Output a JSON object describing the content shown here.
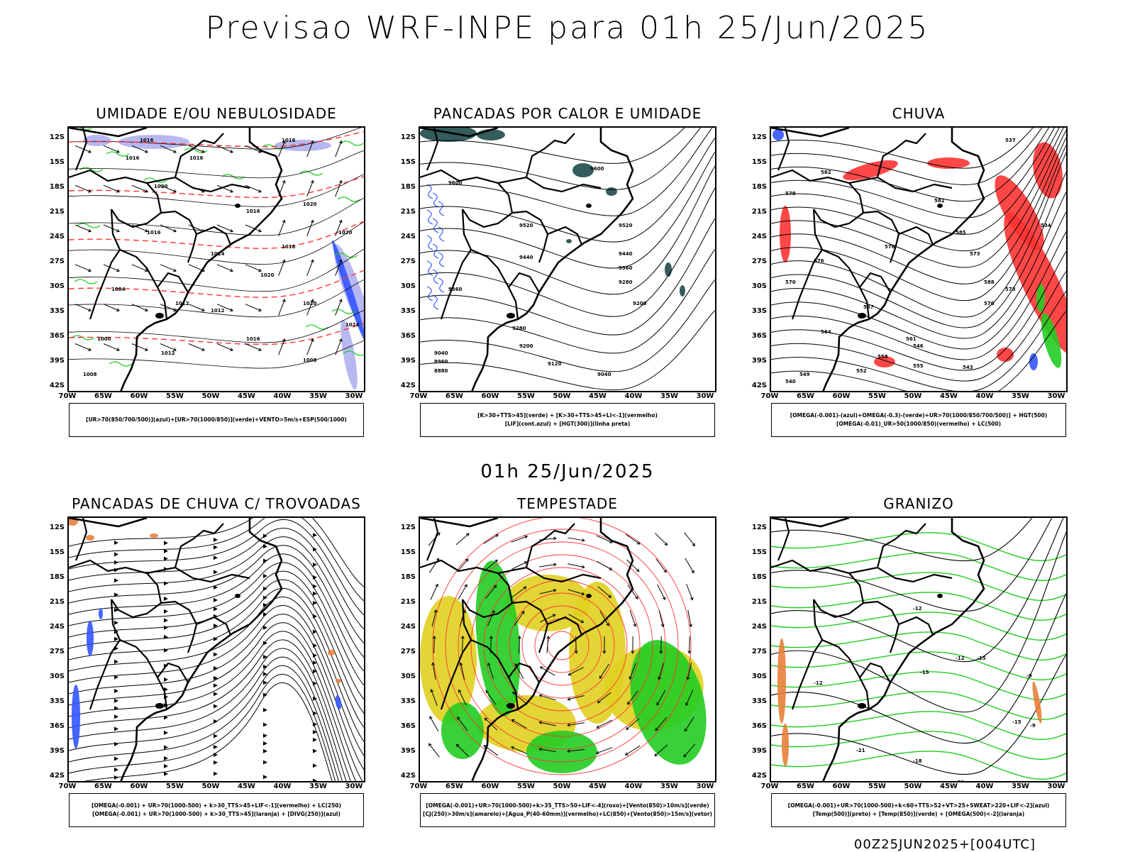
{
  "title": "Previsao WRF-INPE  para 01h 25/Jun/2025",
  "subtitle": "01h 25/Jun/2025",
  "footer": "00Z25JUN2025+[004UTC]",
  "axes": {
    "lat_labels": [
      "12S",
      "15S",
      "18S",
      "21S",
      "24S",
      "27S",
      "30S",
      "33S",
      "36S",
      "39S",
      "42S"
    ],
    "lon_labels": [
      "70W",
      "65W",
      "60W",
      "55W",
      "50W",
      "45W",
      "40W",
      "35W",
      "30W"
    ]
  },
  "colors": {
    "green": "#22cc22",
    "red": "#ff3333",
    "blue": "#3355ff",
    "lavender": "#b0b0f0",
    "yellow": "#e0d020",
    "dark_teal": "#1e4a4a",
    "orange": "#e8803a"
  },
  "panels": [
    {
      "id": "umidade",
      "title": "UMIDADE E/OU NEBULOSIDADE",
      "legend": [
        "[UR>70(850/700/500)](azul)+[UR>70(1000/850)](verde)+VENTO>5m/s+ESP(500/1000)"
      ],
      "contour_labels": [
        "1016",
        "1016",
        "1016",
        "1016",
        "1020",
        "1016",
        "1020",
        "1024",
        "1020",
        "1020",
        "1016",
        "1012",
        "1008",
        "1004",
        "1000",
        "1008",
        "1012",
        "1012",
        "1016",
        "1020",
        "1024",
        "1016"
      ]
    },
    {
      "id": "pancadas_calor",
      "title": "PANCADAS POR CALOR E UMIDADE",
      "legend": [
        "[K>30+TTS>45](verde) + [K>30+TTS>45+LI<-1](vermelho)",
        "[LIF](cont.azul) + [HGT(300)](linha preta)"
      ],
      "contour_labels": [
        "9600",
        "9600",
        "9520",
        "9520",
        "9440",
        "9440",
        "9360",
        "9360",
        "9280",
        "9280",
        "9200",
        "9200",
        "9120",
        "9040",
        "9040",
        "8960",
        "8880"
      ]
    },
    {
      "id": "chuva",
      "title": "CHUVA",
      "legend": [
        "[OMEGA(-0.001)-(azul)+OMEGA(-0.3)-(verde)+UR>70(1000/850/700/500)] + HGT(500)",
        "[OMEGA(-0.01)_UR>50(1000/850)(vermelho) + LC(500)"
      ],
      "contour_labels": [
        "582",
        "582",
        "579",
        "576",
        "576",
        "573",
        "570",
        "567",
        "564",
        "561",
        "558",
        "555",
        "552",
        "549",
        "546",
        "543",
        "540",
        "537",
        "534",
        "585",
        "588",
        "573",
        "570"
      ]
    },
    {
      "id": "pancadas_trovoadas",
      "title": "PANCADAS DE CHUVA C/ TROVOADAS",
      "legend": [
        "[OMEGA(-0.001) + UR>70(1000-500) + k>30_TTS>45+LIF<-1](vermelho) + LC(250)",
        "[OMEGA(-0.001) + UR>70(1000-500) + k>30_TTS>45](laranja) + [DIVG(250)](azul)"
      ],
      "contour_labels": []
    },
    {
      "id": "tempestade",
      "title": "TEMPESTADE",
      "legend": [
        "[OMEGA(-0.001)+UR>70(1000-500)+k>35_TTS>50+LIF<-4](roxo)+[Vento(850)>10m/s](verde)",
        "[CJ(250)>30m/s](amarelo)+[Agua_P(40-60mm)](vermelho)+LC(850)+[Vento(850)>15m/s](vetor)"
      ],
      "contour_labels": []
    },
    {
      "id": "granizo",
      "title": "GRANIZO",
      "legend": [
        "[OMEGA(-0.001)+UR>70(1000-500)+k<60+TTS>52+VT>25+SWEAT>220+LIF<-2](azul)",
        "[Temp(500)](preto) + [Temp(850)](verde) + [OMEGA(500)<-2](laranja)"
      ],
      "contour_labels": [
        "-12",
        "-12",
        "-15",
        "-15",
        "-18",
        "-21",
        "-21",
        "-9",
        "-15",
        "-9",
        "-12"
      ]
    }
  ]
}
